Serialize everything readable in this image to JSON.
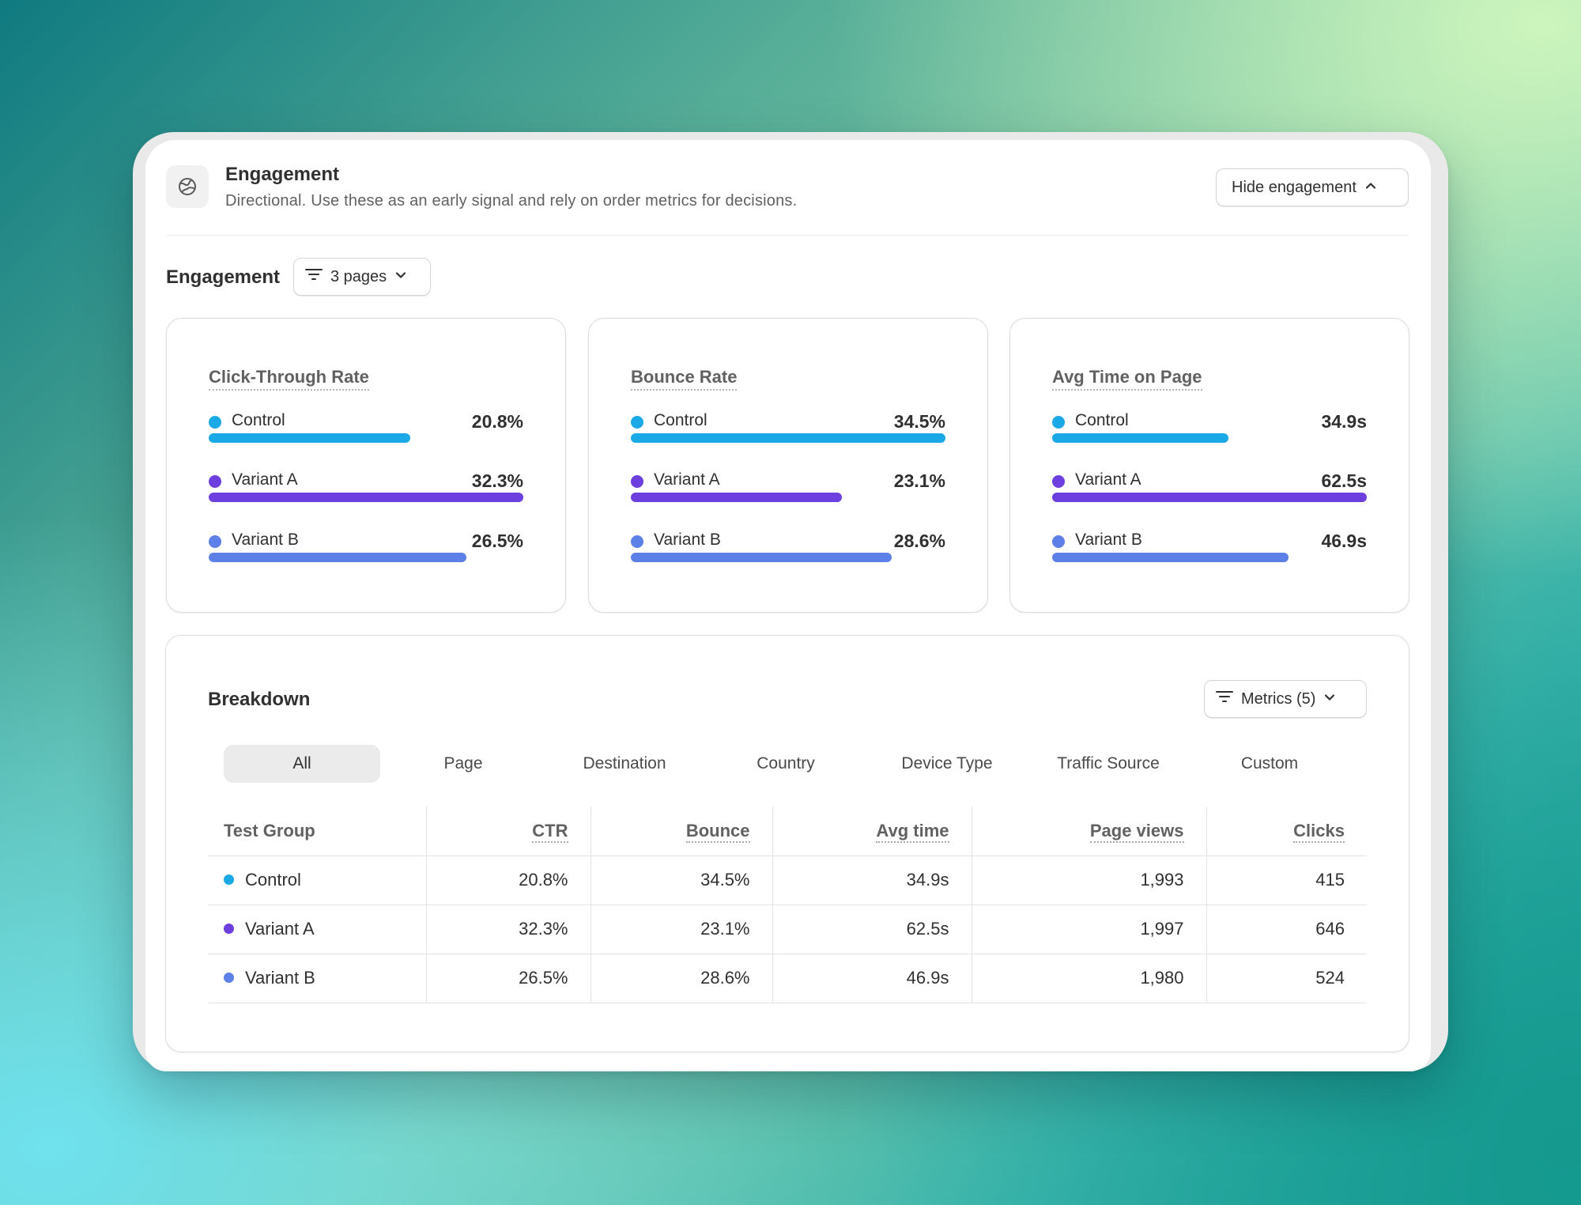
{
  "header": {
    "title": "Engagement",
    "subtitle": "Directional. Use these as an early signal and rely on order metrics for decisions.",
    "hide_button": "Hide engagement",
    "icon": "globe-icon"
  },
  "section": {
    "title": "Engagement",
    "pages_filter": "3 pages"
  },
  "colors": {
    "control": "#1ba8e6",
    "variant_a": "#6c3fde",
    "variant_b": "#5c80e8"
  },
  "cards": [
    {
      "title": "Click-Through Rate",
      "rows": [
        {
          "label": "Control",
          "value": "20.8%",
          "fraction": 0.64
        },
        {
          "label": "Variant A",
          "value": "32.3%",
          "fraction": 1.0
        },
        {
          "label": "Variant B",
          "value": "26.5%",
          "fraction": 0.82
        }
      ]
    },
    {
      "title": "Bounce Rate",
      "rows": [
        {
          "label": "Control",
          "value": "34.5%",
          "fraction": 1.0
        },
        {
          "label": "Variant A",
          "value": "23.1%",
          "fraction": 0.67
        },
        {
          "label": "Variant B",
          "value": "28.6%",
          "fraction": 0.83
        }
      ]
    },
    {
      "title": "Avg Time on Page",
      "rows": [
        {
          "label": "Control",
          "value": "34.9s",
          "fraction": 0.56
        },
        {
          "label": "Variant A",
          "value": "62.5s",
          "fraction": 1.0
        },
        {
          "label": "Variant B",
          "value": "46.9s",
          "fraction": 0.75
        }
      ]
    }
  ],
  "breakdown": {
    "title": "Breakdown",
    "metrics_button": "Metrics (5)",
    "tabs": [
      "All",
      "Page",
      "Destination",
      "Country",
      "Device Type",
      "Traffic Source",
      "Custom"
    ],
    "active_tab": "All",
    "columns": [
      "Test Group",
      "CTR",
      "Bounce",
      "Avg time",
      "Page views",
      "Clicks"
    ],
    "rows": [
      [
        "Control",
        "20.8%",
        "34.5%",
        "34.9s",
        "1,993",
        "415"
      ],
      [
        "Variant A",
        "32.3%",
        "23.1%",
        "62.5s",
        "1,997",
        "646"
      ],
      [
        "Variant B",
        "26.5%",
        "28.6%",
        "46.9s",
        "1,980",
        "524"
      ]
    ]
  }
}
